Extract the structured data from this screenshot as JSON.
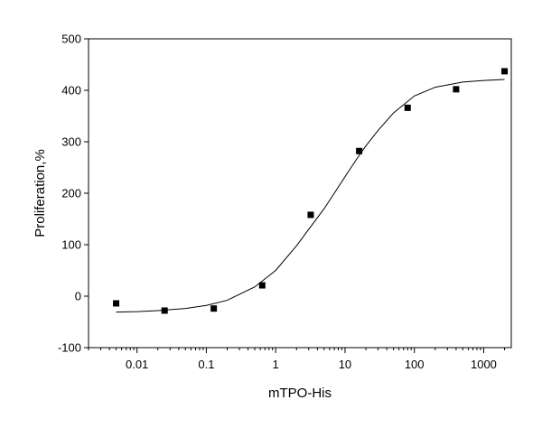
{
  "chart_data": {
    "type": "scatter",
    "title": "",
    "xlabel": "mTPO-His",
    "ylabel": "Proliferation,%",
    "x_scale": "log",
    "xlim": [
      0.002,
      2500
    ],
    "ylim": [
      -100,
      500
    ],
    "x_ticks": [
      0.01,
      0.1,
      1,
      10,
      100,
      1000
    ],
    "x_tick_labels": [
      "0.01",
      "0.1",
      "1",
      "10",
      "100",
      "1000"
    ],
    "y_ticks": [
      -100,
      0,
      100,
      200,
      300,
      400,
      500
    ],
    "y_tick_labels": [
      "-100",
      "0",
      "100",
      "200",
      "300",
      "400",
      "500"
    ],
    "grid": false,
    "legend": "none",
    "marker_color": "#000000",
    "line_color": "#000000",
    "series": [
      {
        "kind": "points",
        "marker": "square",
        "x": [
          0.005,
          0.025,
          0.128,
          0.64,
          3.2,
          16,
          80,
          400,
          2000
        ],
        "y": [
          -14,
          -28,
          -24,
          21,
          158,
          282,
          366,
          402,
          437
        ]
      },
      {
        "kind": "fitted-curve",
        "x": [
          0.005,
          0.01,
          0.02,
          0.05,
          0.1,
          0.2,
          0.5,
          1,
          2,
          3,
          5,
          7,
          10,
          15,
          20,
          30,
          50,
          100,
          200,
          500,
          1000,
          2000
        ],
        "y": [
          -31,
          -30,
          -28,
          -24,
          -18,
          -8,
          18,
          50,
          98,
          130,
          170,
          200,
          232,
          268,
          292,
          322,
          356,
          389,
          406,
          416,
          419,
          421
        ]
      }
    ]
  }
}
